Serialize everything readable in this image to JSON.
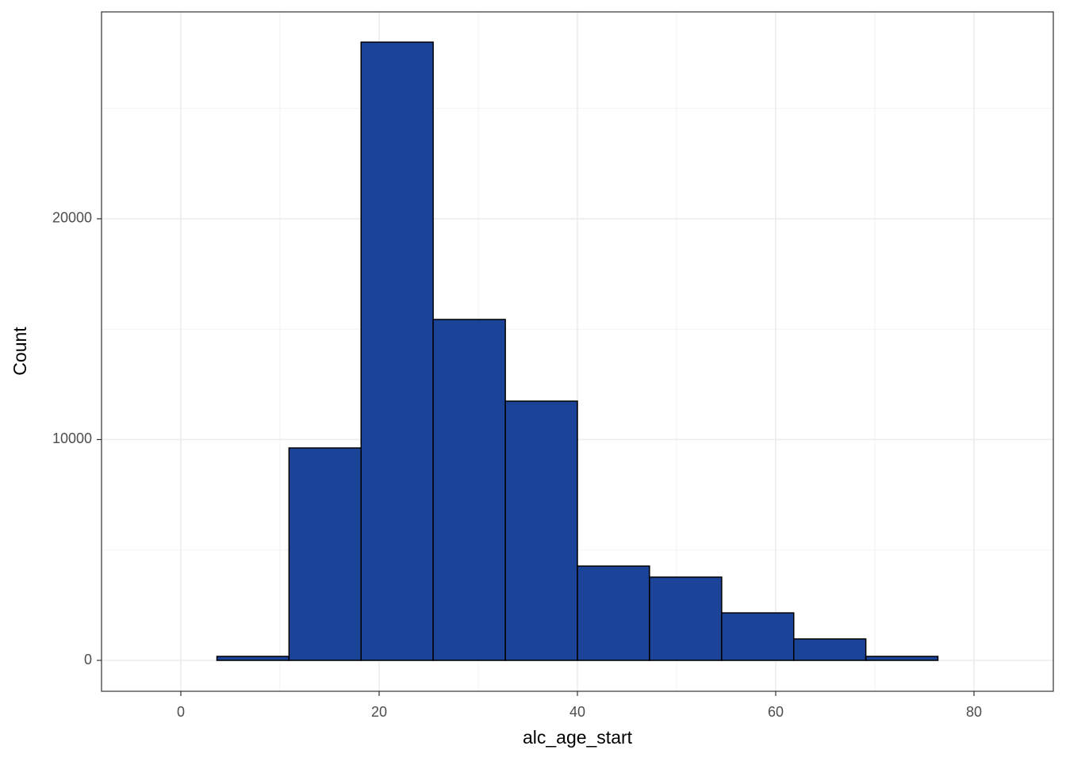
{
  "chart_data": {
    "type": "histogram",
    "x_label": "alc_age_start",
    "y_label": "Count",
    "bins": [
      -3.64,
      3.64,
      10.91,
      18.18,
      25.45,
      32.73,
      40,
      47.27,
      54.55,
      61.82,
      69.09,
      76.36,
      83.64
    ],
    "values": [
      0,
      180,
      9620,
      28000,
      15440,
      11740,
      4270,
      3770,
      2150,
      970,
      180,
      0
    ],
    "color": "#1b4397",
    "edge_color": "#000000",
    "xlim": [
      -8,
      88
    ],
    "ylim": [
      -1400,
      29370
    ],
    "xticks": [
      0,
      20,
      40,
      60,
      80
    ],
    "yticks": [
      0,
      10000,
      20000
    ],
    "minor_xticks": [
      10,
      30,
      50,
      70
    ],
    "minor_yticks": [
      5000,
      15000,
      25000
    ],
    "grid": true
  }
}
